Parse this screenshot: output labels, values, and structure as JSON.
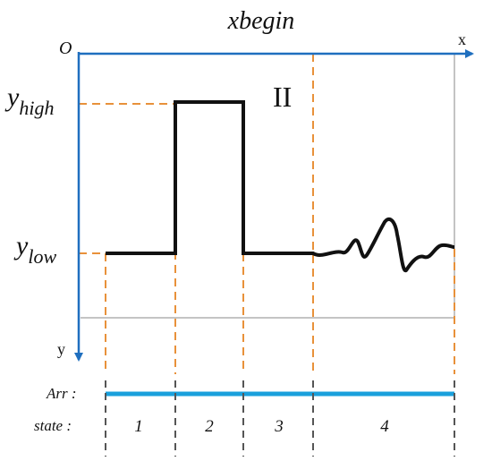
{
  "title": "xbegin",
  "origin_label": "O",
  "x_axis_label": "x",
  "y_axis_label": "y",
  "region_label": "II",
  "y_high": {
    "base": "y",
    "sub": "high"
  },
  "y_low": {
    "base": "y",
    "sub": "low"
  },
  "arr_label": "Arr :",
  "state_label": "state :",
  "states": [
    "1",
    "2",
    "3",
    "4"
  ],
  "colors": {
    "axis": "#1f6fbf",
    "dashed_guides": "#e8913a",
    "signal": "#111111",
    "arr_bar": "#1aa0dc",
    "state_separators": "#555555",
    "frame": "#888888"
  }
}
